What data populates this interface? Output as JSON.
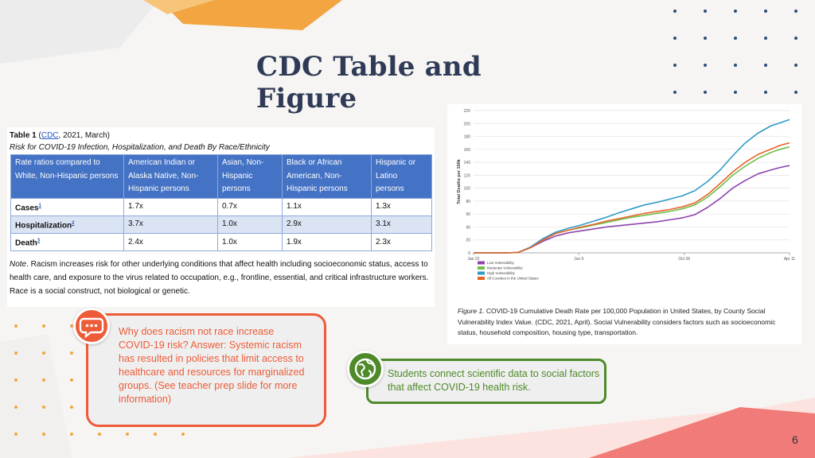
{
  "slide": {
    "title": "CDC Table and Figure",
    "page_number": "6",
    "colors": {
      "title": "#2f3b56",
      "accent_orange": "#ee5b38",
      "accent_green": "#4f8a2a",
      "table_header": "#4472c4",
      "dot_blue": "#2a4d77",
      "dot_orange": "#f2a541"
    }
  },
  "table": {
    "caption_label": "Table 1",
    "caption_open": "(",
    "caption_link": "CDC",
    "caption_rest": ", 2021, March)",
    "subtitle": "Risk for COVID-19 Infection, Hospitalization, and Death By Race/Ethnicity",
    "headers": [
      "Rate ratios compared to White, Non-Hispanic persons",
      "American Indian or Alaska Native, Non-Hispanic persons",
      "Asian, Non-Hispanic persons",
      "Black or African American, Non-Hispanic persons",
      "Hispanic or Latino persons"
    ],
    "rows": [
      {
        "label": "Cases",
        "sup": "1",
        "values": [
          "1.7x",
          "0.7x",
          "1.1x",
          "1.3x"
        ]
      },
      {
        "label": "Hospitalization",
        "sup": "2",
        "values": [
          "3.7x",
          "1.0x",
          "2.9x",
          "3.1x"
        ]
      },
      {
        "label": "Death",
        "sup": "3",
        "values": [
          "2.4x",
          "1.0x",
          "1.9x",
          "2.3x"
        ]
      }
    ],
    "note_label": "Note",
    "note_text": ". Racism increases risk for other underlying conditions that affect health including socioeconomic status, access to health care, and exposure to the virus related to occupation, e.g., frontline, essential, and critical infrastructure workers. Race is a social construct, not biological or genetic."
  },
  "chart_data": {
    "type": "line",
    "title": "",
    "xlabel": "",
    "ylabel": "Total Deaths per 100k",
    "x_ticks": [
      "Jan 22",
      "Jun 9",
      "Oct 26",
      "Apr 11"
    ],
    "x_tick_positions": [
      0,
      0.333,
      0.667,
      1.0
    ],
    "y_ticks": [
      0,
      20,
      40,
      60,
      80,
      100,
      120,
      140,
      160,
      180,
      200,
      220
    ],
    "ylim": [
      0,
      220
    ],
    "grid": true,
    "legend_placement": "bottom-left",
    "x": [
      0,
      0.03,
      0.06,
      0.1,
      0.14,
      0.18,
      0.22,
      0.26,
      0.3,
      0.34,
      0.38,
      0.42,
      0.46,
      0.5,
      0.54,
      0.58,
      0.62,
      0.66,
      0.7,
      0.74,
      0.78,
      0.82,
      0.86,
      0.9,
      0.94,
      0.97,
      1.0
    ],
    "series": [
      {
        "name": "Low Vulnerability",
        "color": "#8e44ad",
        "values": [
          0,
          0,
          0,
          0,
          0.5,
          8,
          18,
          26,
          31,
          34,
          37,
          40,
          42,
          44,
          46,
          48,
          51,
          54,
          59,
          70,
          84,
          100,
          112,
          122,
          128,
          132,
          135
        ]
      },
      {
        "name": "Moderate Vulnerability",
        "color": "#6fbf4a",
        "values": [
          0,
          0,
          0,
          0,
          0.5,
          8,
          20,
          30,
          35,
          39,
          43,
          47,
          51,
          55,
          58,
          61,
          64,
          68,
          74,
          86,
          102,
          120,
          134,
          146,
          155,
          160,
          164
        ]
      },
      {
        "name": "High Vulnerability",
        "color": "#2e9bc6",
        "values": [
          0,
          0,
          0,
          0,
          0.5,
          9,
          22,
          32,
          38,
          43,
          49,
          55,
          62,
          68,
          74,
          78,
          83,
          88,
          96,
          110,
          128,
          150,
          170,
          185,
          196,
          201,
          206
        ]
      },
      {
        "name": "All Counties in the United States",
        "color": "#e8632a",
        "values": [
          0,
          0,
          0,
          0,
          0.5,
          8,
          20,
          30,
          35,
          40,
          44,
          49,
          53,
          57,
          61,
          64,
          67,
          71,
          77,
          90,
          107,
          125,
          140,
          152,
          160,
          166,
          170
        ]
      }
    ]
  },
  "figure_caption": {
    "label": "Figure 1.",
    "text": " COVID-19 Cumulative Death Rate per 100,000 Population in United States, by County Social Vulnerability Index Value. (CDC, 2021, April). Social Vulnerability considers factors such as socioeconomic status, household composition, housing type, transportation."
  },
  "callouts": {
    "question": "Why does racism not race increase COVID-19 risk? Answer: Systemic racism has resulted in policies that limit access to healthcare and resources for marginalized groups. (See teacher prep slide for more information)",
    "question_icon": "chat-bubble-icon",
    "info": "Students connect scientific data to social factors that affect COVID-19 health risk.",
    "info_icon": "globe-icon"
  }
}
